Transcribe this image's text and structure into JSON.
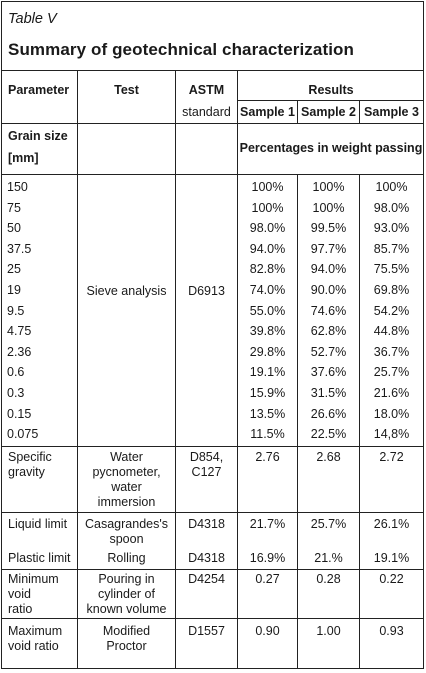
{
  "caption": "Table V",
  "title": "Summary of geotechnical characterization",
  "headers": {
    "parameter": "Parameter",
    "test": "Test",
    "astm": "ASTM",
    "standard": "standard",
    "results": "Results",
    "sample1": "Sample 1",
    "sample2": "Sample 2",
    "sample3": "Sample 3"
  },
  "grain": {
    "label1": "Grain size",
    "label2": "[mm]",
    "subheader": "Percentages in weight passing",
    "test": "Sieve analysis",
    "astm": "D6913",
    "rows": [
      {
        "size": "150",
        "s1": "100%",
        "s2": "100%",
        "s3": "100%"
      },
      {
        "size": "75",
        "s1": "100%",
        "s2": "100%",
        "s3": "98.0%"
      },
      {
        "size": "50",
        "s1": "98.0%",
        "s2": "99.5%",
        "s3": "93.0%"
      },
      {
        "size": "37.5",
        "s1": "94.0%",
        "s2": "97.7%",
        "s3": "85.7%"
      },
      {
        "size": "25",
        "s1": "82.8%",
        "s2": "94.0%",
        "s3": "75.5%"
      },
      {
        "size": "19",
        "s1": "74.0%",
        "s2": "90.0%",
        "s3": "69.8%"
      },
      {
        "size": "9.5",
        "s1": "55.0%",
        "s2": "74.6%",
        "s3": "54.2%"
      },
      {
        "size": "4.75",
        "s1": "39.8%",
        "s2": "62.8%",
        "s3": "44.8%"
      },
      {
        "size": "2.36",
        "s1": "29.8%",
        "s2": "52.7%",
        "s3": "36.7%"
      },
      {
        "size": "0.6",
        "s1": "19.1%",
        "s2": "37.6%",
        "s3": "25.7%"
      },
      {
        "size": "0.3",
        "s1": "15.9%",
        "s2": "31.5%",
        "s3": "21.6%"
      },
      {
        "size": "0.15",
        "s1": "13.5%",
        "s2": "26.6%",
        "s3": "18.0%"
      },
      {
        "size": "0.075",
        "s1": "11.5%",
        "s2": "22.5%",
        "s3": "14,8%"
      }
    ]
  },
  "specific_gravity": {
    "param1": "Specific",
    "param2": "gravity",
    "test1": "Water",
    "test2": "pycnometer,",
    "test3": "water",
    "test4": "immersion",
    "astm1": "D854,",
    "astm2": "C127",
    "s1": "2.76",
    "s2": "2.68",
    "s3": "2.72"
  },
  "liquid_limit": {
    "param": "Liquid limit",
    "test1": "Casagrandes's",
    "test2": "spoon",
    "astm": "D4318",
    "s1": "21.7%",
    "s2": "25.7%",
    "s3": "26.1%"
  },
  "plastic_limit": {
    "param": "Plastic limit",
    "test": "Rolling",
    "astm": "D4318",
    "s1": "16.9%",
    "s2": "21.%",
    "s3": "19.1%"
  },
  "min_void": {
    "param1": "Minimum",
    "param2": "void",
    "param3": "ratio",
    "test1": "Pouring in",
    "test2": "cylinder of",
    "test3": "known volume",
    "astm": "D4254",
    "s1": "0.27",
    "s2": "0.28",
    "s3": "0.22"
  },
  "max_void": {
    "param1": "Maximum",
    "param2": "void ratio",
    "test1": "Modified",
    "test2": "Proctor",
    "astm": "D1557",
    "s1": "0.90",
    "s2": "1.00",
    "s3": "0.93"
  }
}
